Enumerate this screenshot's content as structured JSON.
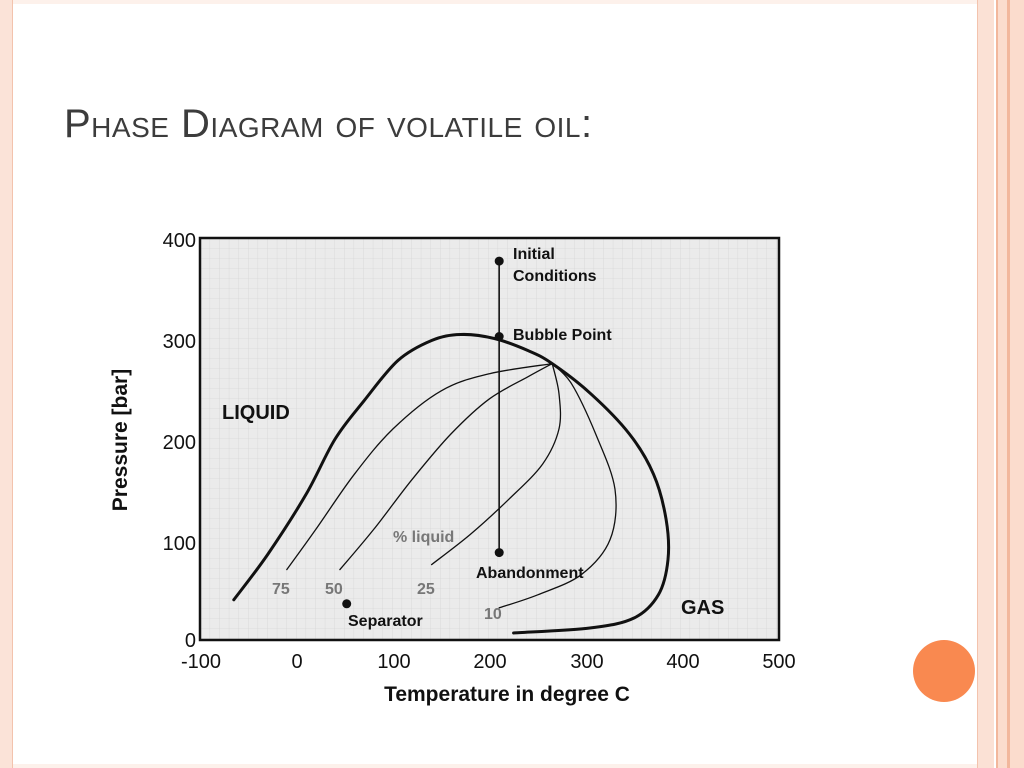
{
  "slide": {
    "title": "Phase Diagram of volatile oil:"
  },
  "colors": {
    "accent": "#f98950",
    "frame": "#fbe1d5",
    "plot_background": "#ebebeb"
  },
  "chart_data": {
    "type": "line",
    "xlabel": "Temperature in degree C",
    "ylabel": "Pressure [bar]",
    "xlim": [
      -100,
      500
    ],
    "ylim": [
      0,
      400
    ],
    "x_ticks": [
      "-100",
      "0",
      "100",
      "200",
      "300",
      "400",
      "500"
    ],
    "y_ticks": [
      "0",
      "100",
      "200",
      "300",
      "400"
    ],
    "grid": true,
    "series": [
      {
        "name": "",
        "role": "phase envelope",
        "points": [
          [
            -65,
            40
          ],
          [
            -30,
            85
          ],
          [
            10,
            145
          ],
          [
            40,
            200
          ],
          [
            70,
            238
          ],
          [
            105,
            278
          ],
          [
            140,
            298
          ],
          [
            170,
            304
          ],
          [
            205,
            300
          ],
          [
            240,
            288
          ],
          [
            265,
            275
          ],
          [
            305,
            245
          ],
          [
            345,
            205
          ],
          [
            370,
            165
          ],
          [
            383,
            120
          ],
          [
            385,
            80
          ],
          [
            375,
            45
          ],
          [
            350,
            22
          ],
          [
            305,
            12
          ],
          [
            225,
            7
          ]
        ]
      },
      {
        "name": "75",
        "role": "quality line",
        "points": [
          [
            -10,
            70
          ],
          [
            20,
            110
          ],
          [
            60,
            165
          ],
          [
            100,
            210
          ],
          [
            150,
            248
          ],
          [
            200,
            265
          ],
          [
            265,
            275
          ]
        ]
      },
      {
        "name": "50",
        "role": "quality line",
        "points": [
          [
            45,
            70
          ],
          [
            80,
            110
          ],
          [
            120,
            160
          ],
          [
            160,
            205
          ],
          [
            200,
            240
          ],
          [
            240,
            262
          ],
          [
            265,
            275
          ]
        ]
      },
      {
        "name": "25",
        "role": "quality line",
        "points": [
          [
            140,
            75
          ],
          [
            180,
            105
          ],
          [
            220,
            140
          ],
          [
            255,
            175
          ],
          [
            272,
            210
          ],
          [
            272,
            245
          ],
          [
            265,
            275
          ]
        ]
      },
      {
        "name": "10",
        "role": "quality line",
        "points": [
          [
            210,
            32
          ],
          [
            250,
            45
          ],
          [
            295,
            65
          ],
          [
            325,
            100
          ],
          [
            330,
            150
          ],
          [
            310,
            205
          ],
          [
            285,
            255
          ],
          [
            265,
            275
          ]
        ]
      },
      {
        "name": "",
        "role": "isothermal depletion path",
        "points": [
          [
            210,
            377
          ],
          [
            210,
            87
          ]
        ]
      }
    ],
    "points": [
      {
        "label": "Initial Conditions",
        "x": 210,
        "y": 377
      },
      {
        "label": "Bubble Point",
        "x": 210,
        "y": 302
      },
      {
        "label": "Abandonment",
        "x": 210,
        "y": 87
      },
      {
        "label": "Separator",
        "x": 52,
        "y": 36
      }
    ],
    "annotations": {
      "initial_line1": "Initial",
      "initial_line2": "Conditions",
      "bubble_point": "Bubble Point",
      "abandonment": "Abandonment",
      "separator": "Separator",
      "percent_liquid": "% liquid",
      "q75": "75",
      "q50": "50",
      "q25": "25",
      "q10": "10",
      "liquid": "LIQUID",
      "gas": "GAS"
    }
  }
}
